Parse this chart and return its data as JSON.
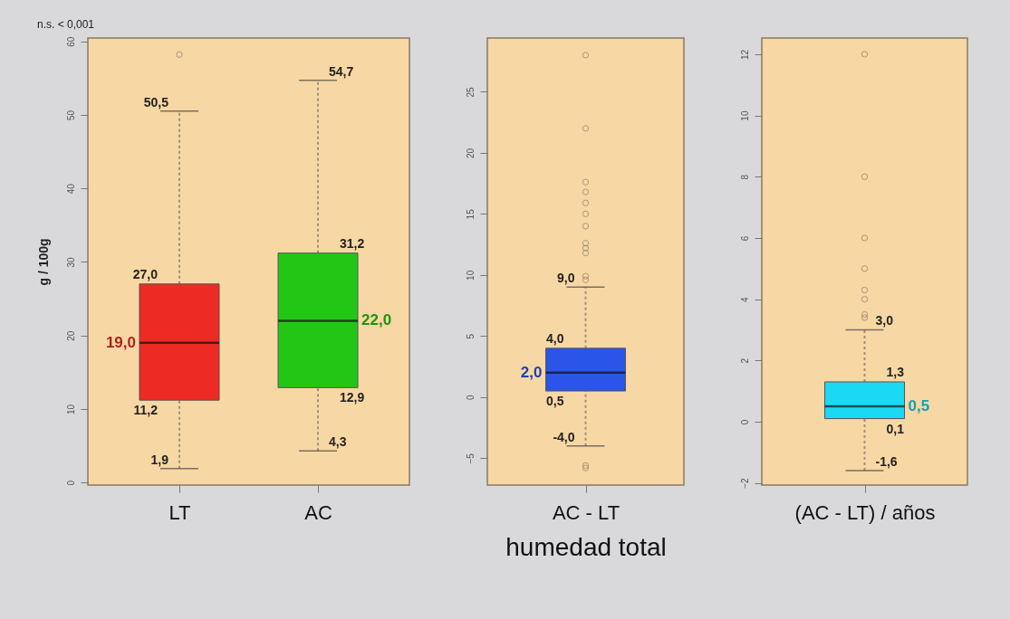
{
  "chart_data": [
    {
      "type": "box",
      "ylabel": "g / 100g",
      "categories": [
        "LT",
        "AC"
      ],
      "colors": [
        "#ee2a24",
        "#22c716"
      ],
      "ylim": [
        -0.35,
        60.45
      ],
      "yticks": [
        0,
        10,
        20,
        30,
        40,
        50,
        60
      ],
      "boxes": [
        {
          "low": 1.9,
          "q1": 11.2,
          "median": 19.0,
          "q3": 27.0,
          "high": 50.5,
          "outliers": [
            58.2
          ]
        },
        {
          "low": 4.3,
          "q1": 12.9,
          "median": 22.0,
          "q3": 31.2,
          "high": 54.7
        }
      ],
      "annotations": [
        "n.s. < 0,001",
        {
          "text": "1,9",
          "x": "LT",
          "y": 1.9
        },
        {
          "text": "11,2",
          "x": "LT",
          "y": 11.2
        },
        {
          "text": "19,0",
          "x": "LT",
          "y": 19.0
        },
        {
          "text": "27,0",
          "x": "LT",
          "y": 27.0
        },
        {
          "text": "50,5",
          "x": "LT",
          "y": 50.5
        },
        {
          "text": "4,3",
          "x": "AC",
          "y": 4.3
        },
        {
          "text": "12,9",
          "x": "AC",
          "y": 12.9
        },
        {
          "text": "22,0",
          "x": "AC",
          "y": 22.0
        },
        {
          "text": "31,2",
          "x": "AC",
          "y": 31.2
        },
        {
          "text": "54,7",
          "x": "AC",
          "y": 54.7
        }
      ]
    },
    {
      "type": "box",
      "xlabel": "humedad total",
      "categories": [
        "AC - LT"
      ],
      "colors": [
        "#2a55e8"
      ],
      "ylim": [
        -7.2,
        29.4
      ],
      "yticks": [
        -5,
        0,
        5,
        10,
        15,
        20,
        25
      ],
      "boxes": [
        {
          "low": -4.0,
          "q1": 0.5,
          "median": 2.0,
          "q3": 4.0,
          "high": 9.0,
          "outliers": [
            28.0,
            22.0,
            17.6,
            16.8,
            15.9,
            15.0,
            14.0,
            12.6,
            12.2,
            11.8,
            9.9,
            9.6,
            -5.6,
            -5.8
          ]
        }
      ],
      "annotations": [
        {
          "text": "-4,0",
          "x": "AC - LT",
          "y": -4.0
        },
        {
          "text": "0,5",
          "x": "AC - LT",
          "y": 0.5
        },
        {
          "text": "2,0",
          "x": "AC - LT",
          "y": 2.0
        },
        {
          "text": "4,0",
          "x": "AC - LT",
          "y": 4.0
        },
        {
          "text": "9,0",
          "x": "AC - LT",
          "y": 9.0
        }
      ]
    },
    {
      "type": "box",
      "categories": [
        "(AC - LT) / años"
      ],
      "colors": [
        "#19d9f5"
      ],
      "ylim": [
        -2.07,
        12.53
      ],
      "yticks": [
        -2,
        0,
        2,
        4,
        6,
        8,
        10,
        12
      ],
      "boxes": [
        {
          "low": -1.6,
          "q1": 0.1,
          "median": 0.5,
          "q3": 1.3,
          "high": 3.0,
          "outliers": [
            12.0,
            8.0,
            6.0,
            5.0,
            4.3,
            4.0,
            3.5,
            3.4
          ]
        }
      ],
      "annotations": [
        {
          "text": "-1,6",
          "x": "(AC - LT) / años",
          "y": -1.6
        },
        {
          "text": "0,1",
          "x": "(AC - LT) / años",
          "y": 0.1
        },
        {
          "text": "0,5",
          "x": "(AC - LT) / años",
          "y": 0.5
        },
        {
          "text": "1,3",
          "x": "(AC - LT) / años",
          "y": 1.3
        },
        {
          "text": "3,0",
          "x": "(AC - LT) / años",
          "y": 3.0
        }
      ]
    }
  ]
}
